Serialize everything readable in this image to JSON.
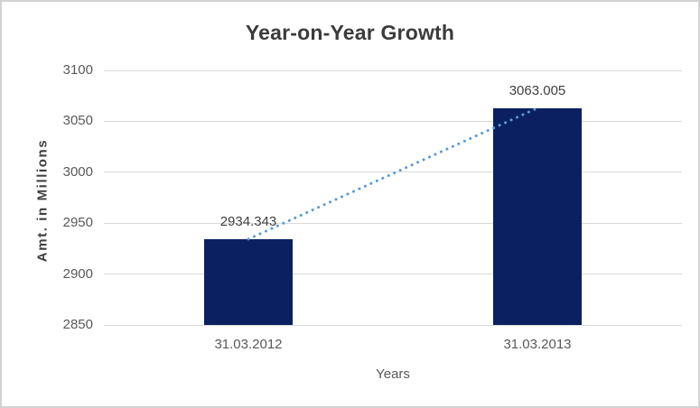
{
  "chart_data": {
    "type": "bar",
    "title": "Year-on-Year Growth",
    "categories": [
      "31.03.2012",
      "31.03.2013"
    ],
    "values": [
      2934.343,
      3063.005
    ],
    "data_labels": [
      "2934.343",
      "3063.005"
    ],
    "xlabel": "Years",
    "ylabel": "Amt. in Millions",
    "ylim": [
      2850,
      3100
    ],
    "yticks": [
      "2850",
      "2900",
      "2950",
      "3000",
      "3050",
      "3100"
    ],
    "grid": true,
    "legend_position": "none",
    "bar_color": "#0a2060",
    "gridline_color": "#d9d9d9",
    "frame_border_color": "#d2d2d2",
    "title_color": "#3b3b3b",
    "axis_text_color": "#595959",
    "trendline": {
      "type": "linear",
      "style": "dotted",
      "color": "#5b9bd5",
      "from_value": 2934.343,
      "to_value": 3063.005
    }
  }
}
